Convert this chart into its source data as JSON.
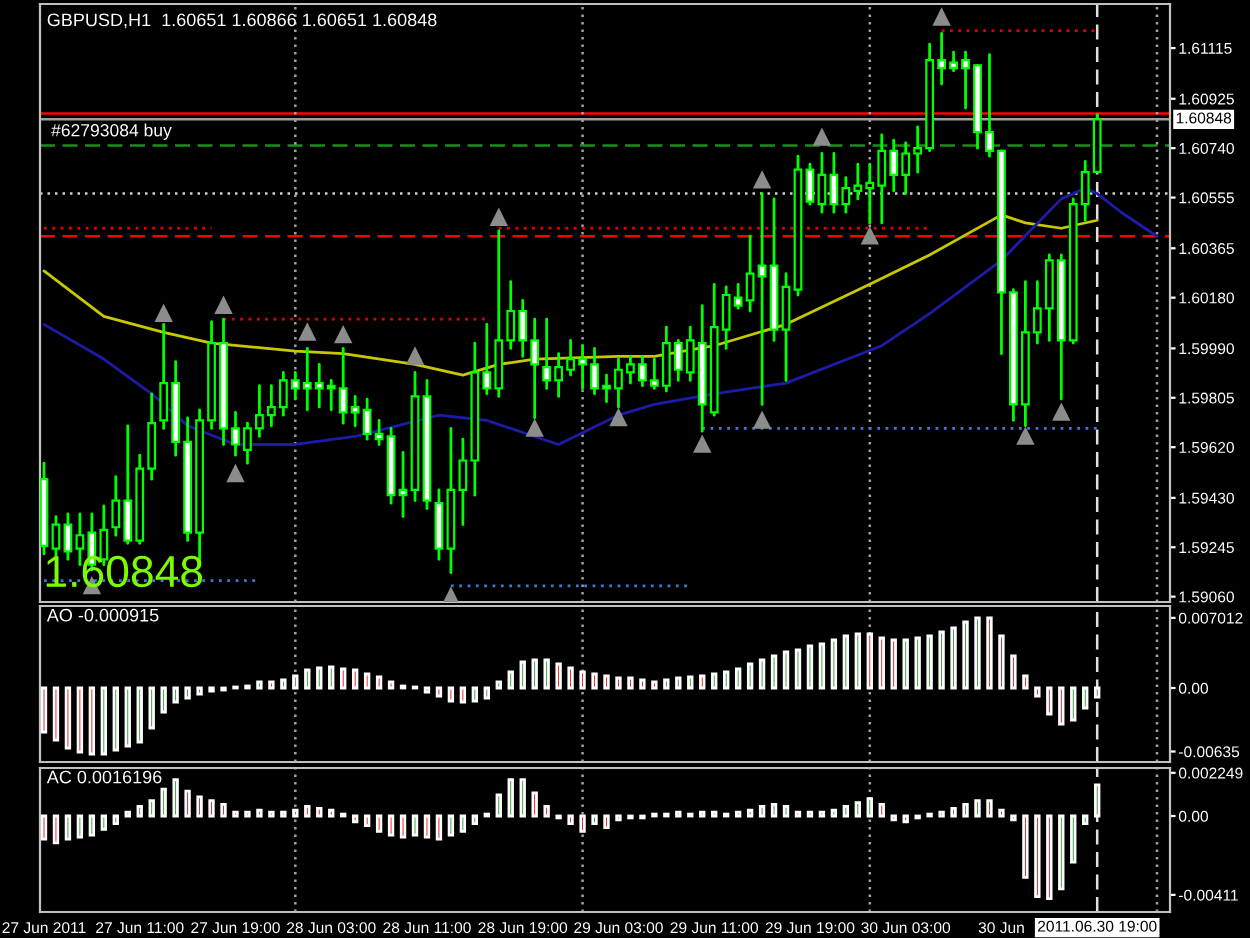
{
  "chart_data": [
    {
      "type": "candlestick",
      "title": "GBPUSD,H1  1.60651 1.60866 1.60651 1.60848",
      "x": [
        "2011-06-27T03:00",
        "2011-06-27T04:00",
        "2011-06-27T05:00",
        "2011-06-27T06:00",
        "2011-06-27T07:00",
        "2011-06-27T08:00",
        "2011-06-27T09:00",
        "2011-06-27T10:00",
        "2011-06-27T11:00",
        "2011-06-27T12:00",
        "2011-06-27T13:00",
        "2011-06-27T14:00",
        "2011-06-27T15:00",
        "2011-06-27T16:00",
        "2011-06-27T17:00",
        "2011-06-27T18:00",
        "2011-06-27T19:00",
        "2011-06-27T20:00",
        "2011-06-27T21:00",
        "2011-06-27T22:00",
        "2011-06-27T23:00",
        "2011-06-28T00:00",
        "2011-06-28T01:00",
        "2011-06-28T02:00",
        "2011-06-28T03:00",
        "2011-06-28T04:00",
        "2011-06-28T05:00",
        "2011-06-28T06:00",
        "2011-06-28T07:00",
        "2011-06-28T08:00",
        "2011-06-28T09:00",
        "2011-06-28T10:00",
        "2011-06-28T11:00",
        "2011-06-28T12:00",
        "2011-06-28T13:00",
        "2011-06-28T14:00",
        "2011-06-28T15:00",
        "2011-06-28T16:00",
        "2011-06-28T17:00",
        "2011-06-28T18:00",
        "2011-06-28T19:00",
        "2011-06-28T20:00",
        "2011-06-28T21:00",
        "2011-06-28T22:00",
        "2011-06-28T23:00",
        "2011-06-29T00:00",
        "2011-06-29T01:00",
        "2011-06-29T02:00",
        "2011-06-29T03:00",
        "2011-06-29T04:00",
        "2011-06-29T05:00",
        "2011-06-29T06:00",
        "2011-06-29T07:00",
        "2011-06-29T08:00",
        "2011-06-29T09:00",
        "2011-06-29T10:00",
        "2011-06-29T11:00",
        "2011-06-29T12:00",
        "2011-06-29T13:00",
        "2011-06-29T14:00",
        "2011-06-29T15:00",
        "2011-06-29T16:00",
        "2011-06-29T17:00",
        "2011-06-29T18:00",
        "2011-06-29T19:00",
        "2011-06-29T20:00",
        "2011-06-29T21:00",
        "2011-06-29T22:00",
        "2011-06-29T23:00",
        "2011-06-30T00:00",
        "2011-06-30T01:00",
        "2011-06-30T02:00",
        "2011-06-30T03:00",
        "2011-06-30T04:00",
        "2011-06-30T05:00",
        "2011-06-30T06:00",
        "2011-06-30T07:00",
        "2011-06-30T08:00",
        "2011-06-30T09:00",
        "2011-06-30T10:00",
        "2011-06-30T11:00",
        "2011-06-30T12:00",
        "2011-06-30T13:00",
        "2011-06-30T14:00",
        "2011-06-30T15:00",
        "2011-06-30T16:00",
        "2011-06-30T17:00",
        "2011-06-30T18:00",
        "2011-06-30T19:00"
      ],
      "ohlc": [
        [
          1.595,
          1.5956,
          1.5922,
          1.5925
        ],
        [
          1.5924,
          1.5936,
          1.5921,
          1.5933
        ],
        [
          1.5933,
          1.5937,
          1.592,
          1.5923
        ],
        [
          1.5924,
          1.5937,
          1.5918,
          1.5929
        ],
        [
          1.593,
          1.5937,
          1.5916,
          1.5918
        ],
        [
          1.592,
          1.594,
          1.5918,
          1.5931
        ],
        [
          1.5932,
          1.5951,
          1.5929,
          1.5942
        ],
        [
          1.5942,
          1.597,
          1.5926,
          1.5927
        ],
        [
          1.5927,
          1.5959,
          1.5926,
          1.5954
        ],
        [
          1.5954,
          1.5982,
          1.595,
          1.5971
        ],
        [
          1.5972,
          1.6008,
          1.5969,
          1.5986
        ],
        [
          1.5986,
          1.5994,
          1.5959,
          1.5964
        ],
        [
          1.5964,
          1.5973,
          1.5927,
          1.593
        ],
        [
          1.593,
          1.5976,
          1.5918,
          1.5972
        ],
        [
          1.5972,
          1.6009,
          1.5969,
          1.6001
        ],
        [
          1.6001,
          1.601,
          1.5963,
          1.5969
        ],
        [
          1.5969,
          1.5975,
          1.5959,
          1.5963
        ],
        [
          1.5961,
          1.5971,
          1.5956,
          1.5969
        ],
        [
          1.5969,
          1.5985,
          1.5966,
          1.5974
        ],
        [
          1.5974,
          1.5985,
          1.597,
          1.5977
        ],
        [
          1.5977,
          1.599,
          1.5974,
          1.5987
        ],
        [
          1.5987,
          1.599,
          1.598,
          1.5984
        ],
        [
          1.5986,
          1.5999,
          1.5976,
          1.5984
        ],
        [
          1.5986,
          1.5993,
          1.5977,
          1.5984
        ],
        [
          1.5985,
          1.5987,
          1.5976,
          1.5984
        ],
        [
          1.5984,
          1.5999,
          1.5971,
          1.5975
        ],
        [
          1.5977,
          1.5981,
          1.597,
          1.5975
        ],
        [
          1.5976,
          1.598,
          1.5965,
          1.5967
        ],
        [
          1.5967,
          1.5972,
          1.5963,
          1.5965
        ],
        [
          1.5966,
          1.5969,
          1.5941,
          1.5944
        ],
        [
          1.5946,
          1.596,
          1.5936,
          1.5944
        ],
        [
          1.5946,
          1.599,
          1.5942,
          1.5981
        ],
        [
          1.5981,
          1.5987,
          1.5939,
          1.5942
        ],
        [
          1.5941,
          1.5946,
          1.592,
          1.5924
        ],
        [
          1.5924,
          1.5969,
          1.5915,
          1.5946
        ],
        [
          1.5946,
          1.5965,
          1.5933,
          1.5957
        ],
        [
          1.5957,
          1.6001,
          1.5944,
          1.599
        ],
        [
          1.599,
          1.6008,
          1.5982,
          1.5984
        ],
        [
          1.5984,
          1.6043,
          1.5981,
          1.6002
        ],
        [
          1.6002,
          1.6024,
          1.5999,
          1.6013
        ],
        [
          1.6013,
          1.6017,
          1.5996,
          1.6002
        ],
        [
          1.6002,
          1.601,
          1.5973,
          1.5993
        ],
        [
          1.5992,
          1.601,
          1.5984,
          1.5987
        ],
        [
          1.5987,
          1.5997,
          1.5981,
          1.5992
        ],
        [
          1.5991,
          1.6002,
          1.5989,
          1.5995
        ],
        [
          1.5995,
          1.6,
          1.5984,
          1.5993
        ],
        [
          1.5993,
          1.5999,
          1.5982,
          1.5984
        ],
        [
          1.5985,
          1.5989,
          1.5979,
          1.5984
        ],
        [
          1.5984,
          1.5995,
          1.5977,
          1.5991
        ],
        [
          1.599,
          1.5996,
          1.5986,
          1.5993
        ],
        [
          1.5993,
          1.5996,
          1.5985,
          1.5987
        ],
        [
          1.5987,
          1.5995,
          1.5984,
          1.5985
        ],
        [
          1.5985,
          1.6007,
          1.5983,
          1.6001
        ],
        [
          1.6001,
          1.6002,
          1.5987,
          1.5991
        ],
        [
          1.599,
          1.6007,
          1.5987,
          1.6002
        ],
        [
          1.6001,
          1.6015,
          1.5968,
          1.5978
        ],
        [
          1.5975,
          1.6023,
          1.5974,
          1.6007
        ],
        [
          1.6006,
          1.6022,
          1.5999,
          1.6019
        ],
        [
          1.6018,
          1.6023,
          1.6014,
          1.6015
        ],
        [
          1.6017,
          1.6041,
          1.6013,
          1.6027
        ],
        [
          1.603,
          1.6057,
          1.5978,
          1.6026
        ],
        [
          1.603,
          1.6055,
          1.6002,
          1.6006
        ],
        [
          1.6006,
          1.6027,
          1.5987,
          1.6022
        ],
        [
          1.6021,
          1.6071,
          1.6019,
          1.6066
        ],
        [
          1.6066,
          1.6068,
          1.6053,
          1.6054
        ],
        [
          1.6053,
          1.6072,
          1.605,
          1.6064
        ],
        [
          1.6064,
          1.6072,
          1.605,
          1.6053
        ],
        [
          1.6053,
          1.6063,
          1.605,
          1.6059
        ],
        [
          1.6058,
          1.6068,
          1.6055,
          1.606
        ],
        [
          1.6059,
          1.6068,
          1.6046,
          1.6061
        ],
        [
          1.606,
          1.6079,
          1.6046,
          1.6073
        ],
        [
          1.6073,
          1.6077,
          1.6058,
          1.6064
        ],
        [
          1.6064,
          1.6076,
          1.6057,
          1.6072
        ],
        [
          1.6072,
          1.6082,
          1.6065,
          1.6074
        ],
        [
          1.6074,
          1.6113,
          1.6073,
          1.6107
        ],
        [
          1.6107,
          1.6117,
          1.6098,
          1.6104
        ],
        [
          1.6106,
          1.611,
          1.6103,
          1.6104
        ],
        [
          1.6107,
          1.611,
          1.6089,
          1.6104
        ],
        [
          1.6105,
          1.6105,
          1.6074,
          1.608
        ],
        [
          1.608,
          1.6109,
          1.6071,
          1.6073
        ],
        [
          1.6073,
          1.6073,
          1.5997,
          1.602
        ],
        [
          1.602,
          1.6021,
          1.5972,
          1.5978
        ],
        [
          1.5978,
          1.6024,
          1.597,
          1.6005
        ],
        [
          1.6005,
          1.6024,
          1.6001,
          1.6014
        ],
        [
          1.6014,
          1.6034,
          1.6002,
          1.6032
        ],
        [
          1.6032,
          1.6034,
          1.598,
          1.6002
        ],
        [
          1.6002,
          1.6055,
          1.6001,
          1.6053
        ],
        [
          1.6053,
          1.6069,
          1.6047,
          1.6065
        ],
        [
          1.60651,
          1.60866,
          1.60651,
          1.60848
        ]
      ],
      "series": [
        {
          "type": "line",
          "color": "#c8c800",
          "x": [
            "2011-06-27T03:00",
            "2011-06-27T08:00",
            "2011-06-27T13:00",
            "2011-06-27T17:00",
            "2011-06-28T00:00",
            "2011-06-28T04:00",
            "2011-06-28T10:00",
            "2011-06-28T14:00",
            "2011-06-28T17:00",
            "2011-06-28T20:00",
            "2011-06-29T03:00",
            "2011-06-29T06:00",
            "2011-06-29T11:00",
            "2011-06-29T17:00",
            "2011-06-30T00:00",
            "2011-06-30T05:00",
            "2011-06-30T11:00",
            "2011-06-30T13:00",
            "2011-06-30T16:00",
            "2011-06-30T19:00"
          ],
          "values": [
            1.6028,
            1.6011,
            1.6005,
            1.6001,
            1.5998,
            1.5997,
            1.5993,
            1.5989,
            1.5993,
            1.5995,
            1.5996,
            1.5996,
            1.6,
            1.6008,
            1.6023,
            1.6034,
            1.6049,
            1.6046,
            1.6044,
            1.6047
          ]
        },
        {
          "type": "line",
          "color": "#1c1ca8",
          "x": [
            "2011-06-27T03:00",
            "2011-06-27T08:00",
            "2011-06-27T12:00",
            "2011-06-27T15:00",
            "2011-06-27T19:00",
            "2011-06-28T00:00",
            "2011-06-28T05:00",
            "2011-06-28T12:00",
            "2011-06-28T16:00",
            "2011-06-28T22:00",
            "2011-06-29T03:00",
            "2011-06-29T06:00",
            "2011-06-29T11:00",
            "2011-06-29T17:00",
            "2011-06-30T01:00",
            "2011-06-30T05:00",
            "2011-06-30T11:00",
            "2011-06-30T16:00",
            "2011-06-30T18:00",
            "2011-06-30T19:00",
            "2011-06-30T21:00",
            "2011-07-01T00:00"
          ],
          "values": [
            1.6008,
            1.5995,
            1.5982,
            1.597,
            1.5963,
            1.5963,
            1.5966,
            1.5974,
            1.5972,
            1.5963,
            1.5974,
            1.5978,
            1.5982,
            1.5986,
            1.6,
            1.6012,
            1.6032,
            1.6055,
            1.6059,
            1.6057,
            1.605,
            1.6041
          ]
        },
        {
          "type": "scatter",
          "color": "#8c8c8c",
          "marker": "triangle",
          "x": [
            "2011-06-27T13:00",
            "2011-06-27T18:00",
            "2011-06-28T01:00",
            "2011-06-28T04:00",
            "2011-06-28T10:00",
            "2011-06-28T17:00",
            "2011-06-29T15:00",
            "2011-06-29T20:00",
            "2011-06-30T06:00"
          ],
          "values": [
            1.6012,
            1.6015,
            1.6005,
            1.6004,
            1.5996,
            1.6048,
            1.6062,
            1.6078,
            1.6123
          ]
        },
        {
          "type": "scatter",
          "color": "#8c8c8c",
          "marker": "triangle",
          "x": [
            "2011-06-27T07:00",
            "2011-06-27T19:00",
            "2011-06-28T13:00",
            "2011-06-28T20:00",
            "2011-06-29T03:00",
            "2011-06-29T10:00",
            "2011-06-29T15:00",
            "2011-06-30T00:00",
            "2011-06-30T13:00",
            "2011-06-30T16:00"
          ],
          "values": [
            1.591,
            1.5952,
            1.5906,
            1.5969,
            1.5973,
            1.5963,
            1.5972,
            1.6041,
            1.5966,
            1.5975
          ]
        },
        {
          "type": "line",
          "color": "#e00000",
          "line_style": "dotted",
          "x": [
            "2011-06-27T18:00",
            "2011-06-28T16:00"
          ],
          "values": [
            1.601,
            1.601
          ]
        },
        {
          "type": "line",
          "color": "#e00000",
          "line_style": "dotted",
          "x": [
            "2011-06-27T03:00",
            "2011-06-27T17:00"
          ],
          "values": [
            1.6044,
            1.6044
          ]
        },
        {
          "type": "line",
          "color": "#e00000",
          "line_style": "dotted",
          "x": [
            "2011-06-28T17:00",
            "2011-06-30T05:00"
          ],
          "values": [
            1.6044,
            1.6044
          ]
        },
        {
          "type": "line",
          "color": "#e00000",
          "line_style": "dotted",
          "x": [
            "2011-06-30T06:00",
            "2011-06-30T19:00"
          ],
          "values": [
            1.6118,
            1.6118
          ]
        },
        {
          "type": "line",
          "color": "#3c78d8",
          "line_style": "dotted",
          "x": [
            "2011-06-27T03:00",
            "2011-06-27T21:00"
          ],
          "values": [
            1.5912,
            1.5912
          ]
        },
        {
          "type": "line",
          "color": "#3c78d8",
          "line_style": "dotted",
          "x": [
            "2011-06-28T13:00",
            "2011-06-29T09:00"
          ],
          "values": [
            1.591,
            1.591
          ]
        },
        {
          "type": "line",
          "color": "#3c78d8",
          "line_style": "dotted",
          "x": [
            "2011-06-29T10:00",
            "2011-06-30T19:00"
          ],
          "values": [
            1.5969,
            1.5969
          ]
        }
      ],
      "ref_lines": [
        {
          "axis": "y",
          "value": 1.6087,
          "color": "#ff0000",
          "line_style": "solid"
        },
        {
          "axis": "y",
          "value": 1.60848,
          "label": "1.60848",
          "color": "#a0a0a0",
          "line_style": "solid"
        },
        {
          "axis": "y",
          "value": 1.6075,
          "label": "#62793084 buy",
          "color": "#1e8c1e",
          "line_style": "dashed"
        },
        {
          "axis": "y",
          "value": 1.6057,
          "color": "#d0d0d0",
          "line_style": "dotted"
        },
        {
          "axis": "y",
          "value": 1.6041,
          "color": "#ff0000",
          "line_style": "dashed"
        },
        {
          "axis": "x",
          "value": "2011-06-28T00:00",
          "color": "#a0a0a0",
          "line_style": "dotted"
        },
        {
          "axis": "x",
          "value": "2011-06-29T00:00",
          "color": "#a0a0a0",
          "line_style": "dotted"
        },
        {
          "axis": "x",
          "value": "2011-06-30T00:00",
          "color": "#a0a0a0",
          "line_style": "dotted"
        },
        {
          "axis": "x",
          "value": "2011-07-01T00:00",
          "color": "#a0a0a0",
          "line_style": "dotted"
        },
        {
          "axis": "x",
          "value": "2011-06-30T19:00",
          "color": "#e0e0e0",
          "line_style": "dashed"
        }
      ],
      "annotations": [
        "1.60848"
      ],
      "xlim": [
        "2011-06-27T02:40",
        "2011-07-01T01:05"
      ],
      "ylim": [
        1.5904,
        1.6128
      ],
      "yticks": [
        1.61115,
        1.60925,
        {
          "value": 1.6074,
          "label": "1.60740"
        },
        1.60555,
        1.60365,
        {
          "value": 1.6018,
          "label": "1.60180"
        },
        {
          "value": 1.5999,
          "label": "1.59990"
        },
        1.59805,
        {
          "value": 1.5962,
          "label": "1.59620"
        },
        {
          "value": 1.5943,
          "label": "1.59430"
        },
        1.59245,
        {
          "value": 1.5906,
          "label": "1.59060"
        }
      ],
      "tick_labels": "y"
    },
    {
      "type": "bar",
      "title": "AO -0.000915",
      "x": [
        "2011-06-27T03:00",
        "2011-06-27T04:00",
        "2011-06-27T05:00",
        "2011-06-27T06:00",
        "2011-06-27T07:00",
        "2011-06-27T08:00",
        "2011-06-27T09:00",
        "2011-06-27T10:00",
        "2011-06-27T11:00",
        "2011-06-27T12:00",
        "2011-06-27T13:00",
        "2011-06-27T14:00",
        "2011-06-27T15:00",
        "2011-06-27T16:00",
        "2011-06-27T17:00",
        "2011-06-27T18:00",
        "2011-06-27T19:00",
        "2011-06-27T20:00",
        "2011-06-27T21:00",
        "2011-06-27T22:00",
        "2011-06-27T23:00",
        "2011-06-28T00:00",
        "2011-06-28T01:00",
        "2011-06-28T02:00",
        "2011-06-28T03:00",
        "2011-06-28T04:00",
        "2011-06-28T05:00",
        "2011-06-28T06:00",
        "2011-06-28T07:00",
        "2011-06-28T08:00",
        "2011-06-28T09:00",
        "2011-06-28T10:00",
        "2011-06-28T11:00",
        "2011-06-28T12:00",
        "2011-06-28T13:00",
        "2011-06-28T14:00",
        "2011-06-28T15:00",
        "2011-06-28T16:00",
        "2011-06-28T17:00",
        "2011-06-28T18:00",
        "2011-06-28T19:00",
        "2011-06-28T20:00",
        "2011-06-28T21:00",
        "2011-06-28T22:00",
        "2011-06-28T23:00",
        "2011-06-29T00:00",
        "2011-06-29T01:00",
        "2011-06-29T02:00",
        "2011-06-29T03:00",
        "2011-06-29T04:00",
        "2011-06-29T05:00",
        "2011-06-29T06:00",
        "2011-06-29T07:00",
        "2011-06-29T08:00",
        "2011-06-29T09:00",
        "2011-06-29T10:00",
        "2011-06-29T11:00",
        "2011-06-29T12:00",
        "2011-06-29T13:00",
        "2011-06-29T14:00",
        "2011-06-29T15:00",
        "2011-06-29T16:00",
        "2011-06-29T17:00",
        "2011-06-29T18:00",
        "2011-06-29T19:00",
        "2011-06-29T20:00",
        "2011-06-29T21:00",
        "2011-06-29T22:00",
        "2011-06-29T23:00",
        "2011-06-30T00:00",
        "2011-06-30T01:00",
        "2011-06-30T02:00",
        "2011-06-30T03:00",
        "2011-06-30T04:00",
        "2011-06-30T05:00",
        "2011-06-30T06:00",
        "2011-06-30T07:00",
        "2011-06-30T08:00",
        "2011-06-30T09:00",
        "2011-06-30T10:00",
        "2011-06-30T11:00",
        "2011-06-30T12:00",
        "2011-06-30T13:00",
        "2011-06-30T14:00",
        "2011-06-30T15:00",
        "2011-06-30T16:00",
        "2011-06-30T17:00",
        "2011-06-30T18:00",
        "2011-06-30T19:00"
      ],
      "values": [
        -0.0044,
        -0.0052,
        -0.006,
        -0.0064,
        -0.0066,
        -0.0066,
        -0.0062,
        -0.0058,
        -0.0054,
        -0.004,
        -0.0024,
        -0.0014,
        -0.001,
        -0.0006,
        -0.0003,
        -0.0002,
        0.0001,
        0.0002,
        0.0006,
        0.0006,
        0.0008,
        0.0012,
        0.0018,
        0.002,
        0.0021,
        0.0019,
        0.0018,
        0.0014,
        0.0011,
        0.0006,
        0.0002,
        0.0001,
        -0.0004,
        -0.0008,
        -0.0013,
        -0.0014,
        -0.0013,
        -0.001,
        0.0006,
        0.0016,
        0.0026,
        0.0028,
        0.0028,
        0.0024,
        0.002,
        0.0016,
        0.0014,
        0.0012,
        0.001,
        0.001,
        0.0008,
        0.0006,
        0.0008,
        0.001,
        0.0011,
        0.0012,
        0.0014,
        0.0016,
        0.0019,
        0.0024,
        0.0028,
        0.0032,
        0.0036,
        0.0038,
        0.0042,
        0.0044,
        0.0048,
        0.0052,
        0.0054,
        0.0054,
        0.005,
        0.0048,
        0.0048,
        0.005,
        0.0052,
        0.0056,
        0.006,
        0.0066,
        0.007,
        0.007,
        0.0052,
        0.0032,
        0.0012,
        -0.0008,
        -0.0026,
        -0.0036,
        -0.0032,
        -0.002,
        -0.000915
      ],
      "colors": [
        "#e00000",
        "#e00000",
        "#e00000",
        "#e00000",
        "#e00000",
        "#228b22",
        "#228b22",
        "#228b22",
        "#228b22",
        "#228b22",
        "#228b22",
        "#228b22",
        "#228b22",
        "#228b22",
        "#228b22",
        "#228b22",
        "#228b22",
        "#228b22",
        "#228b22",
        "#e00000",
        "#228b22",
        "#228b22",
        "#228b22",
        "#228b22",
        "#228b22",
        "#e00000",
        "#e00000",
        "#e00000",
        "#e00000",
        "#e00000",
        "#e00000",
        "#228b22",
        "#e00000",
        "#e00000",
        "#e00000",
        "#e00000",
        "#228b22",
        "#228b22",
        "#228b22",
        "#228b22",
        "#228b22",
        "#228b22",
        "#228b22",
        "#e00000",
        "#e00000",
        "#e00000",
        "#e00000",
        "#e00000",
        "#e00000",
        "#e00000",
        "#e00000",
        "#e00000",
        "#228b22",
        "#228b22",
        "#228b22",
        "#e00000",
        "#228b22",
        "#228b22",
        "#228b22",
        "#228b22",
        "#228b22",
        "#228b22",
        "#228b22",
        "#228b22",
        "#228b22",
        "#228b22",
        "#228b22",
        "#228b22",
        "#228b22",
        "#e00000",
        "#e00000",
        "#e00000",
        "#228b22",
        "#228b22",
        "#228b22",
        "#228b22",
        "#228b22",
        "#228b22",
        "#228b22",
        "#e00000",
        "#e00000",
        "#e00000",
        "#e00000",
        "#e00000",
        "#e00000",
        "#e00000",
        "#228b22",
        "#228b22",
        "#228b22"
      ],
      "ref_lines": [
        {
          "axis": "x",
          "value": "2011-06-28T00:00",
          "color": "#a0a0a0",
          "line_style": "dotted"
        },
        {
          "axis": "x",
          "value": "2011-06-29T00:00",
          "color": "#a0a0a0",
          "line_style": "dotted"
        },
        {
          "axis": "x",
          "value": "2011-06-30T00:00",
          "color": "#a0a0a0",
          "line_style": "dotted"
        },
        {
          "axis": "x",
          "value": "2011-07-01T00:00",
          "color": "#a0a0a0",
          "line_style": "dotted"
        },
        {
          "axis": "x",
          "value": "2011-06-30T19:00",
          "color": "#e0e0e0",
          "line_style": "dashed"
        }
      ],
      "xlim": [
        "2011-06-27T02:40",
        "2011-07-01T01:05"
      ],
      "ylim": [
        -0.0074,
        0.0082
      ],
      "yticks": [
        0.007012,
        {
          "value": 0,
          "label": "0.00"
        },
        {
          "value": -0.00635,
          "label": "-0.00635"
        }
      ],
      "tick_labels": "y"
    },
    {
      "type": "bar",
      "title": "AC 0.0016196",
      "x": [
        "2011-06-27T03:00",
        "2011-06-27T04:00",
        "2011-06-27T05:00",
        "2011-06-27T06:00",
        "2011-06-27T07:00",
        "2011-06-27T08:00",
        "2011-06-27T09:00",
        "2011-06-27T10:00",
        "2011-06-27T11:00",
        "2011-06-27T12:00",
        "2011-06-27T13:00",
        "2011-06-27T14:00",
        "2011-06-27T15:00",
        "2011-06-27T16:00",
        "2011-06-27T17:00",
        "2011-06-27T18:00",
        "2011-06-27T19:00",
        "2011-06-27T20:00",
        "2011-06-27T21:00",
        "2011-06-27T22:00",
        "2011-06-27T23:00",
        "2011-06-28T00:00",
        "2011-06-28T01:00",
        "2011-06-28T02:00",
        "2011-06-28T03:00",
        "2011-06-28T04:00",
        "2011-06-28T05:00",
        "2011-06-28T06:00",
        "2011-06-28T07:00",
        "2011-06-28T08:00",
        "2011-06-28T09:00",
        "2011-06-28T10:00",
        "2011-06-28T11:00",
        "2011-06-28T12:00",
        "2011-06-28T13:00",
        "2011-06-28T14:00",
        "2011-06-28T15:00",
        "2011-06-28T16:00",
        "2011-06-28T17:00",
        "2011-06-28T18:00",
        "2011-06-28T19:00",
        "2011-06-28T20:00",
        "2011-06-28T21:00",
        "2011-06-28T22:00",
        "2011-06-28T23:00",
        "2011-06-29T00:00",
        "2011-06-29T01:00",
        "2011-06-29T02:00",
        "2011-06-29T03:00",
        "2011-06-29T04:00",
        "2011-06-29T05:00",
        "2011-06-29T06:00",
        "2011-06-29T07:00",
        "2011-06-29T08:00",
        "2011-06-29T09:00",
        "2011-06-29T10:00",
        "2011-06-29T11:00",
        "2011-06-29T12:00",
        "2011-06-29T13:00",
        "2011-06-29T14:00",
        "2011-06-29T15:00",
        "2011-06-29T16:00",
        "2011-06-29T17:00",
        "2011-06-29T18:00",
        "2011-06-29T19:00",
        "2011-06-29T20:00",
        "2011-06-29T21:00",
        "2011-06-29T22:00",
        "2011-06-29T23:00",
        "2011-06-30T00:00",
        "2011-06-30T01:00",
        "2011-06-30T02:00",
        "2011-06-30T03:00",
        "2011-06-30T04:00",
        "2011-06-30T05:00",
        "2011-06-30T06:00",
        "2011-06-30T07:00",
        "2011-06-30T08:00",
        "2011-06-30T09:00",
        "2011-06-30T10:00",
        "2011-06-30T11:00",
        "2011-06-30T12:00",
        "2011-06-30T13:00",
        "2011-06-30T14:00",
        "2011-06-30T15:00",
        "2011-06-30T16:00",
        "2011-06-30T17:00",
        "2011-06-30T18:00",
        "2011-06-30T19:00"
      ],
      "values": [
        -0.0012,
        -0.0014,
        -0.0012,
        -0.0011,
        -0.001,
        -0.0007,
        -0.0004,
        0.0002,
        0.0005,
        0.0008,
        0.0014,
        0.0019,
        0.0013,
        0.001,
        0.0008,
        0.0006,
        0.0002,
        0.0002,
        0.0003,
        0.0002,
        0.0002,
        0.0003,
        0.0005,
        0.0004,
        0.0003,
        0.0001,
        -0.0003,
        -0.0005,
        -0.0008,
        -0.001,
        -0.0011,
        -0.001,
        -0.0011,
        -0.0012,
        -0.001,
        -0.0008,
        -0.0004,
        0.0001,
        0.0011,
        0.0019,
        0.0019,
        0.0012,
        0.0005,
        -0.0001,
        -0.0004,
        -0.0008,
        -0.0004,
        -0.0006,
        -0.0002,
        -0.0001,
        -0.0001,
        0.0001,
        0.0001,
        0.0002,
        0.0001,
        0.0002,
        0.0002,
        0.0001,
        0.0002,
        0.0003,
        0.0005,
        0.0006,
        0.0005,
        0.0002,
        0.0002,
        0.0002,
        0.0003,
        0.0005,
        0.0007,
        0.0009,
        0.0006,
        -0.0002,
        -0.0003,
        -0.0001,
        0.0001,
        0.0002,
        0.0004,
        0.0006,
        0.0008,
        0.0008,
        0.0003,
        -0.0002,
        -0.0032,
        -0.0042,
        -0.0043,
        -0.0038,
        -0.0024,
        -0.0004,
        0.0016196
      ],
      "colors": [
        "#e00000",
        "#e00000",
        "#228b22",
        "#228b22",
        "#228b22",
        "#228b22",
        "#228b22",
        "#228b22",
        "#228b22",
        "#228b22",
        "#228b22",
        "#228b22",
        "#e00000",
        "#e00000",
        "#e00000",
        "#e00000",
        "#e00000",
        "#228b22",
        "#228b22",
        "#e00000",
        "#228b22",
        "#228b22",
        "#e00000",
        "#e00000",
        "#e00000",
        "#e00000",
        "#e00000",
        "#e00000",
        "#e00000",
        "#e00000",
        "#e00000",
        "#228b22",
        "#e00000",
        "#e00000",
        "#228b22",
        "#228b22",
        "#228b22",
        "#228b22",
        "#228b22",
        "#228b22",
        "#228b22",
        "#e00000",
        "#e00000",
        "#e00000",
        "#e00000",
        "#e00000",
        "#228b22",
        "#e00000",
        "#228b22",
        "#228b22",
        "#228b22",
        "#228b22",
        "#228b22",
        "#228b22",
        "#e00000",
        "#228b22",
        "#228b22",
        "#e00000",
        "#228b22",
        "#228b22",
        "#228b22",
        "#228b22",
        "#228b22",
        "#e00000",
        "#e00000",
        "#e00000",
        "#228b22",
        "#228b22",
        "#228b22",
        "#228b22",
        "#e00000",
        "#e00000",
        "#e00000",
        "#228b22",
        "#228b22",
        "#228b22",
        "#228b22",
        "#228b22",
        "#228b22",
        "#e00000",
        "#e00000",
        "#e00000",
        "#e00000",
        "#e00000",
        "#e00000",
        "#228b22",
        "#228b22",
        "#228b22",
        "#228b22"
      ],
      "ref_lines": [
        {
          "axis": "x",
          "value": "2011-06-28T00:00",
          "color": "#a0a0a0",
          "line_style": "dotted"
        },
        {
          "axis": "x",
          "value": "2011-06-29T00:00",
          "color": "#a0a0a0",
          "line_style": "dotted"
        },
        {
          "axis": "x",
          "value": "2011-06-30T00:00",
          "color": "#a0a0a0",
          "line_style": "dotted"
        },
        {
          "axis": "x",
          "value": "2011-07-01T00:00",
          "color": "#a0a0a0",
          "line_style": "dotted"
        },
        {
          "axis": "x",
          "value": "2011-06-30T19:00",
          "label": "2011.06.30 19:00",
          "color": "#e0e0e0",
          "line_style": "dashed"
        }
      ],
      "xlim": [
        "2011-06-27T02:40",
        "2011-07-01T01:05"
      ],
      "ylim": [
        -0.005,
        0.0025
      ],
      "xticks": [
        {
          "value": "2011-06-27T03:00",
          "label": "27 Jun 2011"
        },
        {
          "value": "2011-06-27T11:00",
          "label": "27 Jun 11:00"
        },
        {
          "value": "2011-06-27T19:00",
          "label": "27 Jun 19:00"
        },
        {
          "value": "2011-06-28T03:00",
          "label": "28 Jun 03:00"
        },
        {
          "value": "2011-06-28T11:00",
          "label": "28 Jun 11:00"
        },
        {
          "value": "2011-06-28T19:00",
          "label": "28 Jun 19:00"
        },
        {
          "value": "2011-06-29T03:00",
          "label": "29 Jun 03:00"
        },
        {
          "value": "2011-06-29T11:00",
          "label": "29 Jun 11:00"
        },
        {
          "value": "2011-06-29T19:00",
          "label": "29 Jun 19:00"
        },
        {
          "value": "2011-06-30T03:00",
          "label": "30 Jun 03:00"
        },
        {
          "value": "2011-06-30T11:00",
          "label": "30 Jun"
        }
      ],
      "yticks": [
        0.002249,
        {
          "value": 0,
          "label": "0.00"
        },
        {
          "value": -0.00411,
          "label": "-0.00411"
        }
      ]
    }
  ]
}
